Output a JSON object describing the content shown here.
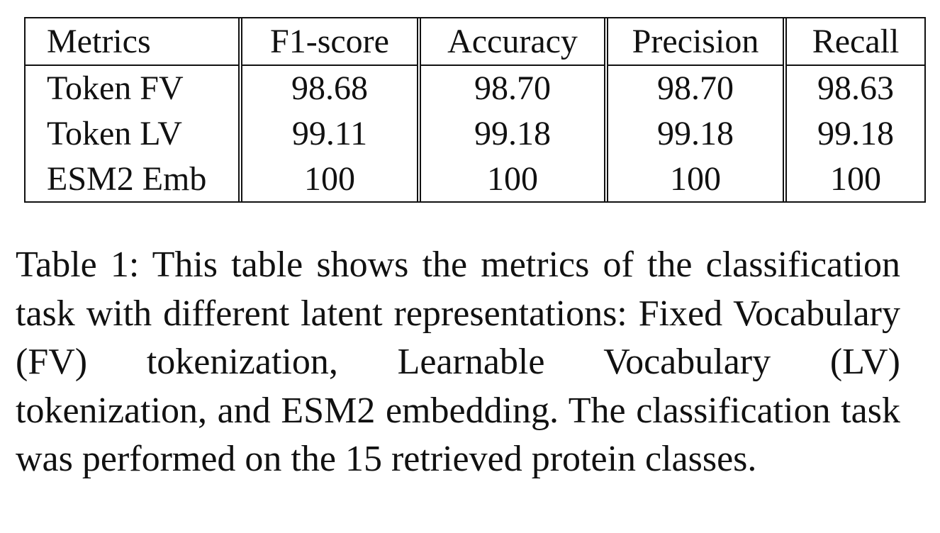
{
  "table": {
    "columns": [
      "Metrics",
      "F1-score",
      "Accuracy",
      "Precision",
      "Recall"
    ],
    "rows": [
      {
        "label": "Token FV",
        "values": [
          "98.68",
          "98.70",
          "98.70",
          "98.63"
        ]
      },
      {
        "label": "Token LV",
        "values": [
          "99.11",
          "99.18",
          "99.18",
          "99.18"
        ]
      },
      {
        "label": "ESM2 Emb",
        "values": [
          "100",
          "100",
          "100",
          "100"
        ]
      }
    ]
  },
  "caption": {
    "text": "Table 1: This table shows the metrics of the classification task with different latent representations: Fixed Vocabulary (FV) tokenization, Learnable Vocabulary (LV) tokenization, and ESM2 embedding. The classification task was performed on the 15 retrieved protein classes."
  }
}
